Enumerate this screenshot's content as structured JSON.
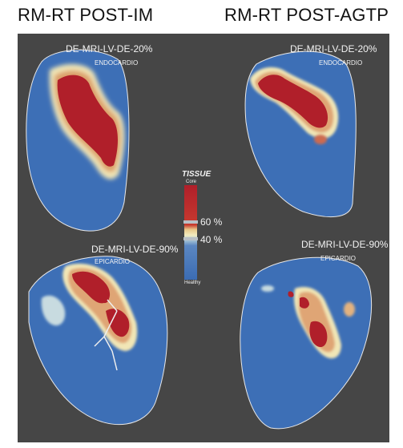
{
  "titles": {
    "left": "RM-RT POST-IM",
    "right": "RM-RT POST-AGTP"
  },
  "maps": {
    "top_left": {
      "label": "DE-MRI-LV-DE-20%",
      "sublabel": "ENDOCARDIO"
    },
    "top_right": {
      "label": "DE-MRI-LV-DE-20%",
      "sublabel": "ENDOCARDIO"
    },
    "bottom_left": {
      "label": "DE-MRI-LV-DE-90%",
      "sublabel": "EPICARDIO"
    },
    "bottom_right": {
      "label": "DE-MRI-LV-DE-90%",
      "sublabel": "EPICARDIO"
    }
  },
  "legend": {
    "title": "TISSUE",
    "top": "Core",
    "bottom": "Healthy",
    "upper_threshold": "60 %",
    "lower_threshold": "40 %"
  },
  "colors": {
    "background": "#464646",
    "healthy": "#3d6fb6",
    "core": "#b01f2a",
    "border_zone": "#f3e6b0"
  }
}
